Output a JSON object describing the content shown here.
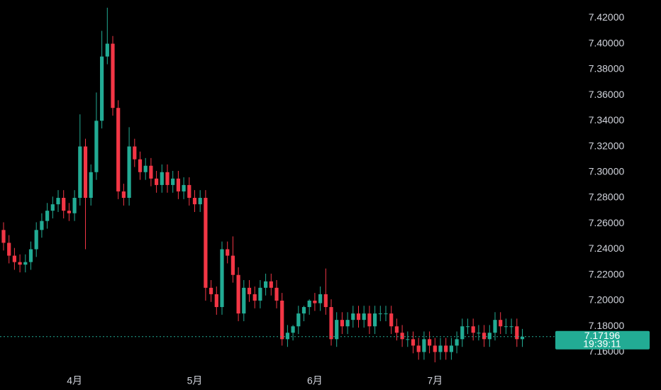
{
  "chart_data": {
    "type": "candlestick",
    "categories": [
      null,
      null,
      null,
      null,
      null,
      null,
      null,
      null,
      null,
      null,
      null,
      null,
      null,
      "4月",
      null,
      null,
      null,
      null,
      null,
      null,
      null,
      null,
      null,
      null,
      null,
      null,
      null,
      null,
      null,
      null,
      null,
      null,
      null,
      null,
      null,
      "5月",
      null,
      null,
      null,
      null,
      null,
      null,
      null,
      null,
      null,
      null,
      null,
      null,
      null,
      null,
      null,
      null,
      null,
      null,
      null,
      null,
      null,
      "6月",
      null,
      null,
      null,
      null,
      null,
      null,
      null,
      null,
      null,
      null,
      null,
      null,
      null,
      null,
      null,
      null,
      null,
      null,
      null,
      null,
      null,
      "7月",
      null,
      null,
      null,
      null,
      null,
      null,
      null,
      null,
      null,
      null,
      null,
      null,
      null,
      null,
      null,
      null
    ],
    "open": [
      7.255,
      7.245,
      7.235,
      7.23,
      7.228,
      7.23,
      7.24,
      7.255,
      7.262,
      7.27,
      7.275,
      7.28,
      7.27,
      7.268,
      7.28,
      7.32,
      7.28,
      7.3,
      7.34,
      7.39,
      7.4,
      7.35,
      7.285,
      7.28,
      7.32,
      7.31,
      7.3,
      7.305,
      7.295,
      7.29,
      7.3,
      7.29,
      7.295,
      7.285,
      7.29,
      7.28,
      7.275,
      7.28,
      7.21,
      7.205,
      7.195,
      7.24,
      7.235,
      7.22,
      7.19,
      7.21,
      7.205,
      7.2,
      7.21,
      7.215,
      7.21,
      7.2,
      7.17,
      7.175,
      7.18,
      7.19,
      7.195,
      7.2,
      7.198,
      7.205,
      7.195,
      7.17,
      7.185,
      7.18,
      7.185,
      7.19,
      7.185,
      7.19,
      7.18,
      7.19,
      7.19,
      7.19,
      7.18,
      7.175,
      7.17,
      7.17,
      7.165,
      7.16,
      7.17,
      7.165,
      7.16,
      7.165,
      7.16,
      7.165,
      7.17,
      7.18,
      7.18,
      7.175,
      7.175,
      7.17,
      7.175,
      7.185,
      7.18,
      7.18,
      7.18,
      7.17
    ],
    "high": [
      7.261,
      7.251,
      7.241,
      7.236,
      7.236,
      7.246,
      7.261,
      7.268,
      7.276,
      7.281,
      7.286,
      7.286,
      7.276,
      7.286,
      7.345,
      7.326,
      7.306,
      7.362,
      7.41,
      7.428,
      7.406,
      7.356,
      7.291,
      7.335,
      7.326,
      7.316,
      7.311,
      7.311,
      7.301,
      7.306,
      7.306,
      7.301,
      7.301,
      7.296,
      7.296,
      7.286,
      7.286,
      7.286,
      7.216,
      7.211,
      7.246,
      7.246,
      7.25,
      7.226,
      7.216,
      7.216,
      7.211,
      7.216,
      7.221,
      7.221,
      7.216,
      7.206,
      7.181,
      7.181,
      7.196,
      7.196,
      7.201,
      7.206,
      7.211,
      7.225,
      7.201,
      7.191,
      7.191,
      7.191,
      7.196,
      7.196,
      7.196,
      7.196,
      7.196,
      7.196,
      7.196,
      7.196,
      7.186,
      7.181,
      7.176,
      7.176,
      7.171,
      7.176,
      7.176,
      7.171,
      7.171,
      7.171,
      7.171,
      7.176,
      7.186,
      7.186,
      7.186,
      7.181,
      7.181,
      7.181,
      7.191,
      7.191,
      7.186,
      7.186,
      7.186,
      7.178
    ],
    "low": [
      7.239,
      7.229,
      7.224,
      7.222,
      7.222,
      7.224,
      7.234,
      7.249,
      7.256,
      7.264,
      7.269,
      7.264,
      7.262,
      7.262,
      7.274,
      7.24,
      7.274,
      7.294,
      7.334,
      7.384,
      7.344,
      7.279,
      7.274,
      7.274,
      7.304,
      7.294,
      7.294,
      7.289,
      7.284,
      7.284,
      7.284,
      7.284,
      7.279,
      7.279,
      7.274,
      7.269,
      7.269,
      7.2,
      7.199,
      7.189,
      7.189,
      7.229,
      7.214,
      7.184,
      7.184,
      7.199,
      7.194,
      7.194,
      7.204,
      7.204,
      7.194,
      7.165,
      7.164,
      7.169,
      7.174,
      7.184,
      7.189,
      7.192,
      7.192,
      7.189,
      7.165,
      7.164,
      7.174,
      7.174,
      7.179,
      7.179,
      7.179,
      7.174,
      7.174,
      7.184,
      7.184,
      7.174,
      7.169,
      7.164,
      7.164,
      7.159,
      7.154,
      7.154,
      7.159,
      7.152,
      7.154,
      7.154,
      7.154,
      7.159,
      7.164,
      7.174,
      7.169,
      7.169,
      7.164,
      7.164,
      7.169,
      7.174,
      7.174,
      7.174,
      7.164,
      7.164
    ],
    "close": [
      7.245,
      7.235,
      7.23,
      7.228,
      7.23,
      7.24,
      7.255,
      7.262,
      7.27,
      7.275,
      7.28,
      7.27,
      7.268,
      7.28,
      7.32,
      7.28,
      7.3,
      7.34,
      7.39,
      7.4,
      7.35,
      7.285,
      7.28,
      7.32,
      7.31,
      7.3,
      7.305,
      7.295,
      7.29,
      7.3,
      7.29,
      7.295,
      7.285,
      7.29,
      7.28,
      7.275,
      7.28,
      7.21,
      7.205,
      7.195,
      7.24,
      7.235,
      7.22,
      7.19,
      7.21,
      7.205,
      7.2,
      7.21,
      7.215,
      7.21,
      7.2,
      7.17,
      7.175,
      7.18,
      7.19,
      7.195,
      7.2,
      7.198,
      7.205,
      7.195,
      7.17,
      7.185,
      7.18,
      7.185,
      7.19,
      7.185,
      7.19,
      7.18,
      7.19,
      7.19,
      7.19,
      7.18,
      7.175,
      7.17,
      7.17,
      7.165,
      7.16,
      7.17,
      7.165,
      7.16,
      7.165,
      7.16,
      7.165,
      7.17,
      7.18,
      7.18,
      7.175,
      7.175,
      7.17,
      7.175,
      7.185,
      7.18,
      7.18,
      7.18,
      7.17,
      7.17196
    ],
    "up_color": "#22ab94",
    "down_color": "#f23645",
    "ylim": [
      7.147,
      7.434
    ],
    "yticks": [
      {
        "value": 7.16,
        "label": "7.16000"
      },
      {
        "value": 7.18,
        "label": "7.18000"
      },
      {
        "value": 7.2,
        "label": "7.20000"
      },
      {
        "value": 7.22,
        "label": "7.22000"
      },
      {
        "value": 7.24,
        "label": "7.24000"
      },
      {
        "value": 7.26,
        "label": "7.26000"
      },
      {
        "value": 7.28,
        "label": "7.28000"
      },
      {
        "value": 7.3,
        "label": "7.30000"
      },
      {
        "value": 7.32,
        "label": "7.32000"
      },
      {
        "value": 7.34,
        "label": "7.34000"
      },
      {
        "value": 7.36,
        "label": "7.36000"
      },
      {
        "value": 7.38,
        "label": "7.38000"
      },
      {
        "value": 7.4,
        "label": "7.40000"
      },
      {
        "value": 7.42,
        "label": "7.42000"
      }
    ],
    "last_price": 7.17196,
    "countdown": "19:39:11"
  }
}
